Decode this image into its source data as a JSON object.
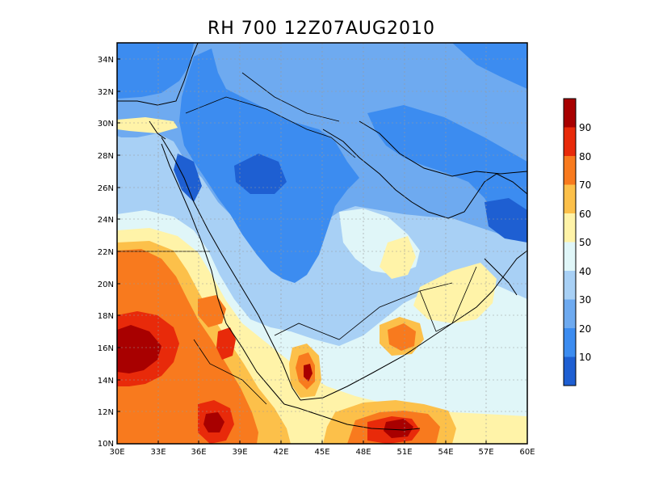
{
  "title": "RH 700 12Z07AUG2010",
  "map": {
    "lon_range": [
      30,
      60
    ],
    "lat_range": [
      10,
      35
    ],
    "x_ticks": [
      "30E",
      "33E",
      "36E",
      "39E",
      "42E",
      "45E",
      "48E",
      "51E",
      "54E",
      "57E",
      "60E"
    ],
    "y_ticks": [
      "10N",
      "12N",
      "14N",
      "16N",
      "18N",
      "20N",
      "22N",
      "24N",
      "26N",
      "28N",
      "30N",
      "32N",
      "34N"
    ],
    "grid": true
  },
  "colorbar": {
    "labels": [
      "10",
      "20",
      "30",
      "40",
      "50",
      "60",
      "70",
      "80",
      "90"
    ],
    "colors": [
      "#1e5fd2",
      "#3c8cf0",
      "#6eaaf0",
      "#a8d0f5",
      "#e0f6f8",
      "#fff3a8",
      "#fcc04a",
      "#f87a1e",
      "#e82a0a",
      "#a80000"
    ]
  }
}
